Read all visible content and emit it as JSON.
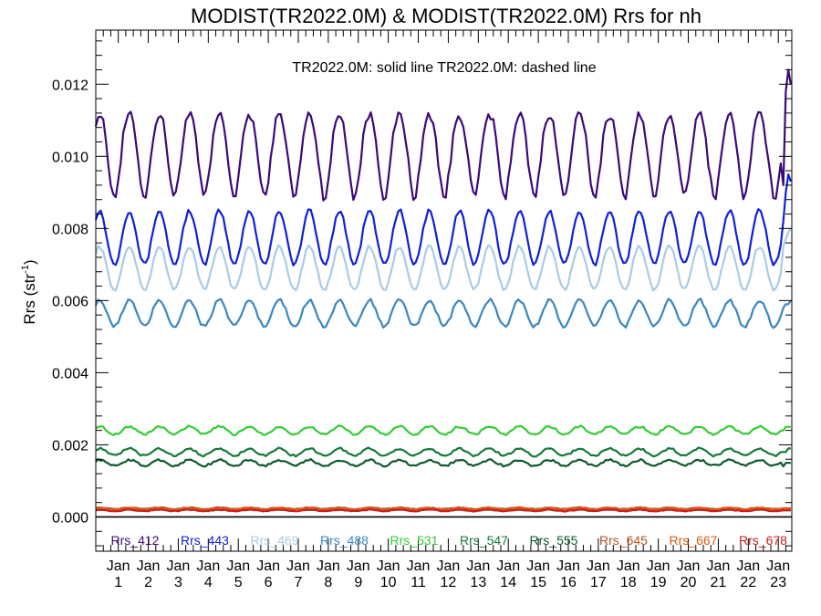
{
  "chart_data": {
    "type": "line",
    "title": "MODIST(TR2022.0M) & MODIST(TR2022.0M)  Rrs for nh",
    "subtitle": "TR2022.0M: solid line   TR2022.0M: dashed line",
    "ylabel": "Rrs (str",
    "ylabel_sup": "-1",
    "ylabel_close": ")",
    "ylim": [
      -0.00095,
      0.0135
    ],
    "y_ticks": [
      0.0,
      0.002,
      0.004,
      0.006,
      0.008,
      0.01,
      0.012
    ],
    "y_tick_labels": [
      "0.000",
      "0.002",
      "0.004",
      "0.006",
      "0.008",
      "0.010",
      "0.012"
    ],
    "x_range": [
      0.25,
      23.45
    ],
    "x_ticks": [
      1,
      2,
      3,
      4,
      5,
      6,
      7,
      8,
      9,
      10,
      11,
      12,
      13,
      14,
      15,
      16,
      17,
      18,
      19,
      20,
      21,
      22,
      23
    ],
    "x_tick_month": "Jan",
    "x_tick_labels": [
      "1",
      "2",
      "3",
      "4",
      "5",
      "6",
      "7",
      "8",
      "9",
      "10",
      "11",
      "12",
      "13",
      "14",
      "15",
      "16",
      "17",
      "18",
      "19",
      "20",
      "21",
      "22",
      "23"
    ],
    "zero_line": 0.0,
    "legend_placement": "bottom",
    "grid": false,
    "series": [
      {
        "name": "Rrs_412",
        "color": "#3b0a78",
        "base": 0.01,
        "amp": 0.00115,
        "trough_sharp": true,
        "noise": 0.00012,
        "end": [
          0.0092,
          0.0118,
          0.0124,
          0.012
        ]
      },
      {
        "name": "Rrs_443",
        "color": "#1020d8",
        "base": 0.00775,
        "amp": 0.00075,
        "trough_sharp": false,
        "noise": 6e-05,
        "end": [
          0.0082,
          0.009,
          0.0095,
          0.0093
        ]
      },
      {
        "name": "Rrs_469",
        "color": "#a8cce6",
        "base": 0.0069,
        "amp": 0.0006,
        "trough_sharp": false,
        "noise": 5e-05,
        "end": [
          0.0075,
          0.0077,
          0.0079,
          0.008
        ]
      },
      {
        "name": "Rrs_488",
        "color": "#3a86c0",
        "base": 0.00565,
        "amp": 0.00037,
        "trough_sharp": false,
        "noise": 5e-05,
        "end": [
          0.0058,
          0.0059,
          0.0059,
          0.006
        ]
      },
      {
        "name": "Rrs_531",
        "color": "#33cc33",
        "base": 0.0024,
        "amp": 0.00011,
        "trough_sharp": false,
        "noise": 3e-05,
        "end": [
          0.0024,
          0.0025,
          0.0025,
          0.0025
        ]
      },
      {
        "name": "Rrs_547",
        "color": "#137a37",
        "base": 0.0018,
        "amp": 0.0001,
        "trough_sharp": false,
        "noise": 3e-05,
        "end": [
          0.0018,
          0.0018,
          0.0019,
          0.0019
        ]
      },
      {
        "name": "Rrs_555",
        "color": "#0e5a2c",
        "base": 0.0015,
        "amp": 8e-05,
        "trough_sharp": false,
        "noise": 3e-05,
        "end": [
          0.0014,
          0.0015,
          0.0015,
          0.0015
        ]
      },
      {
        "name": "Rrs_645",
        "color": "#b0541c",
        "base": 0.00024,
        "amp": 2e-05,
        "trough_sharp": false,
        "noise": 1e-05,
        "end": [
          0.00024,
          0.00024,
          0.00024,
          0.00024
        ]
      },
      {
        "name": "Rrs_667",
        "color": "#e05a10",
        "base": 0.00022,
        "amp": 2e-05,
        "trough_sharp": false,
        "noise": 1e-05,
        "end": [
          0.00022,
          0.00022,
          0.00022,
          0.00022
        ]
      },
      {
        "name": "Rrs_678",
        "color": "#c81e1e",
        "base": 0.00018,
        "amp": 2e-05,
        "trough_sharp": false,
        "noise": 1e-05,
        "end": [
          0.00018,
          0.00018,
          0.00018,
          0.00018
        ]
      }
    ]
  }
}
